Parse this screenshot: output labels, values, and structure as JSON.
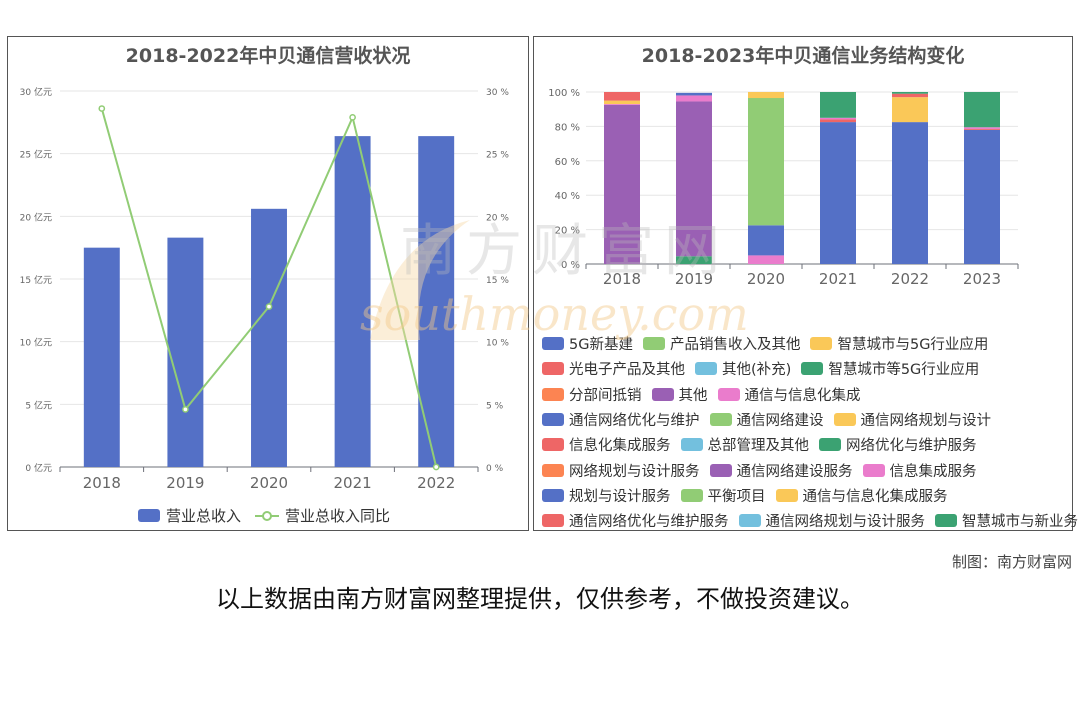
{
  "chart_data": [
    {
      "type": "bar+line",
      "title": "2018-2022年中贝通信营收状况",
      "categories": [
        "2018",
        "2019",
        "2020",
        "2021",
        "2022"
      ],
      "series": [
        {
          "name": "营业总收入",
          "type": "bar",
          "axis": "left",
          "values": [
            17.5,
            18.3,
            20.6,
            26.4,
            26.4
          ],
          "color": "#5470c6"
        },
        {
          "name": "营业总收入同比",
          "type": "line",
          "axis": "right",
          "values": [
            28.6,
            4.6,
            12.8,
            27.9,
            0
          ],
          "color": "#91cc75"
        }
      ],
      "left_axis": {
        "min": 0,
        "max": 30,
        "ticks": [
          "0 亿元",
          "5 亿元",
          "10 亿元",
          "15 亿元",
          "20 亿元",
          "25 亿元",
          "30 亿元"
        ]
      },
      "right_axis": {
        "min": 0,
        "max": 30,
        "ticks": [
          "0 %",
          "5 %",
          "10 %",
          "15 %",
          "20 %",
          "25 %",
          "30 %"
        ]
      },
      "legend_position": "bottom-center",
      "grid": true
    },
    {
      "type": "stacked-bar",
      "title": "2018-2023年中贝通信业务结构变化",
      "categories": [
        "2018",
        "2019",
        "2020",
        "2021",
        "2022",
        "2023"
      ],
      "y_ticks": [
        "0 %",
        "20 %",
        "40 %",
        "60 %",
        "80 %",
        "100 %"
      ],
      "ylim": [
        0,
        100
      ],
      "series": [
        {
          "name": "5G新基建",
          "color": "#5470c6",
          "values": [
            0,
            0,
            0,
            0,
            0,
            0
          ]
        },
        {
          "name": "产品销售收入及其他",
          "color": "#91cc75",
          "values": [
            0,
            0,
            0,
            0,
            0,
            0
          ]
        },
        {
          "name": "智慧城市与5G行业应用",
          "color": "#fac858",
          "values": [
            0,
            0,
            0,
            0,
            0,
            0
          ]
        },
        {
          "name": "光电子产品及其他",
          "color": "#ee6666",
          "values": [
            0,
            0,
            0,
            0,
            0,
            0
          ]
        },
        {
          "name": "其他(补充)",
          "color": "#73c0de",
          "values": [
            0,
            0,
            0,
            0,
            0,
            0
          ]
        },
        {
          "name": "智慧城市等5G行业应用",
          "color": "#3ba272",
          "values": [
            0,
            0,
            0,
            0,
            0,
            0
          ]
        },
        {
          "name": "分部间抵销",
          "color": "#fc8452",
          "values": [
            0,
            0,
            0,
            0,
            0,
            0
          ]
        },
        {
          "name": "其他",
          "color": "#9a60b4",
          "values": [
            0,
            0,
            0,
            0,
            0,
            0
          ]
        },
        {
          "name": "通信与信息化集成",
          "color": "#ea7ccc",
          "values": [
            0,
            0,
            5,
            0,
            0,
            0
          ]
        },
        {
          "name": "通信网络优化与维护",
          "color": "#5470c6",
          "values": [
            0,
            0,
            17.5,
            82.5,
            82.5,
            78
          ]
        },
        {
          "name": "通信网络建设",
          "color": "#91cc75",
          "values": [
            0,
            0,
            74,
            0,
            0,
            0
          ]
        },
        {
          "name": "通信网络规划与设计",
          "color": "#fac858",
          "values": [
            0,
            0,
            3.5,
            0,
            14.5,
            0
          ]
        },
        {
          "name": "信息化集成服务",
          "color": "#ee6666",
          "values": [
            0,
            0,
            0,
            1.5,
            2,
            0.5
          ]
        },
        {
          "name": "总部管理及其他",
          "color": "#73c0de",
          "values": [
            0,
            0,
            0,
            0,
            0,
            0
          ]
        },
        {
          "name": "网络优化与维护服务",
          "color": "#3ba272",
          "values": [
            0,
            4.5,
            0,
            0,
            0,
            0
          ]
        },
        {
          "name": "网络规划与设计服务",
          "color": "#fc8452",
          "values": [
            0,
            0,
            0,
            0,
            0,
            0
          ]
        },
        {
          "name": "通信网络建设服务",
          "color": "#9a60b4",
          "values": [
            92.5,
            90,
            0,
            0,
            0,
            0
          ]
        },
        {
          "name": "信息集成服务",
          "color": "#ea7ccc",
          "values": [
            0.5,
            3.5,
            0,
            1,
            0,
            1
          ]
        },
        {
          "name": "规划与设计服务",
          "color": "#5470c6",
          "values": [
            0,
            1.5,
            0,
            0,
            0,
            0
          ]
        },
        {
          "name": "平衡项目",
          "color": "#91cc75",
          "values": [
            0,
            0,
            0,
            0,
            0,
            0
          ]
        },
        {
          "name": "通信与信息化集成服务",
          "color": "#fac858",
          "values": [
            2,
            0,
            0,
            0,
            0,
            0
          ]
        },
        {
          "name": "通信网络优化与维护服务",
          "color": "#ee6666",
          "values": [
            5,
            0,
            0,
            0,
            0,
            0
          ]
        },
        {
          "name": "通信网络规划与设计服务",
          "color": "#73c0de",
          "values": [
            0,
            0,
            0,
            0,
            0,
            0
          ]
        },
        {
          "name": "智慧城市与新业务",
          "color": "#3ba272",
          "values": [
            0,
            0,
            0,
            15,
            1,
            20.5
          ]
        }
      ],
      "legend_position": "bottom"
    }
  ],
  "watermark": {
    "cn": "南方财富网",
    "en": "southmoney.com"
  },
  "credit": "制图：南方财富网",
  "disclaimer": "以上数据由南方财富网整理提供，仅供参考，不做投资建议。"
}
